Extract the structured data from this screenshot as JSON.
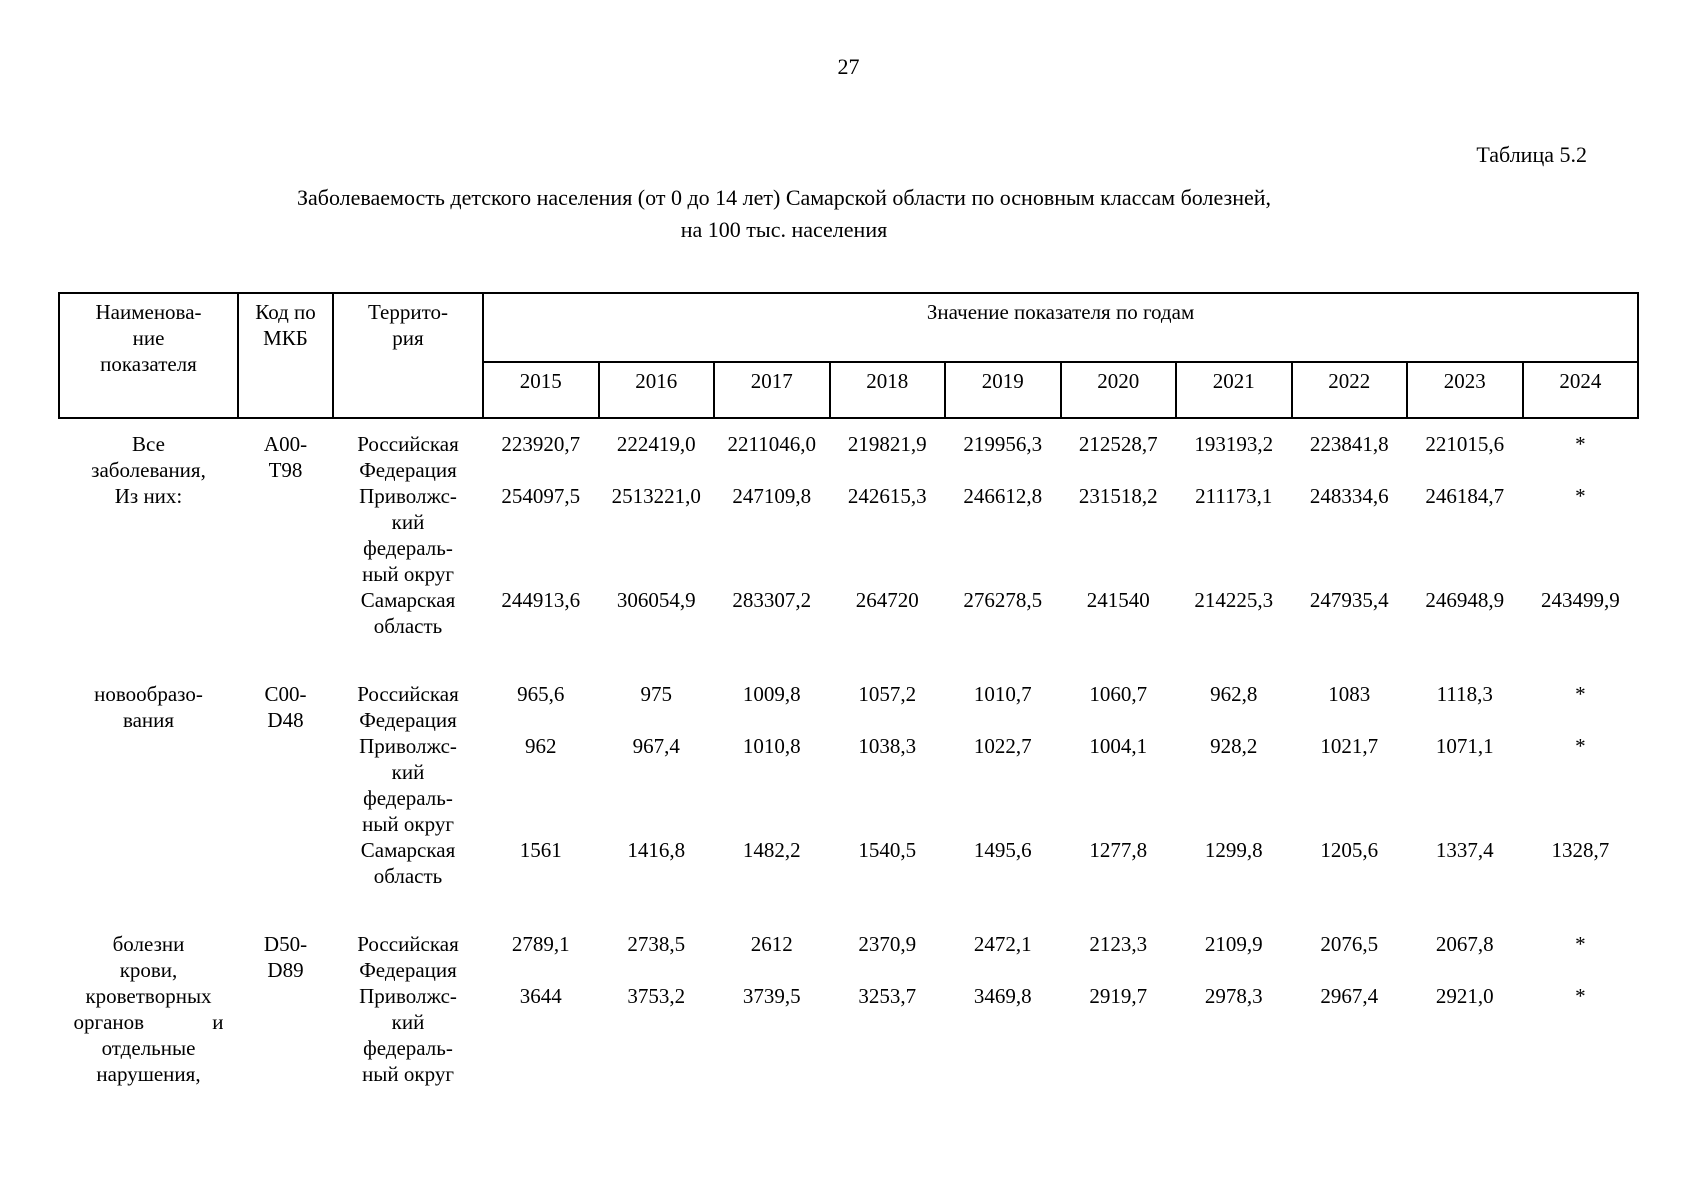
{
  "page": {
    "number": "27",
    "table_label": "Таблица 5.2",
    "title_line1": "Заболеваемость детского населения (от 0 до 14 лет) Самарской области по основным классам болезней,",
    "title_line2": "на 100 тыс. населения"
  },
  "table": {
    "headers": {
      "name": "Наименова-\nние\nпоказателя",
      "code": "Код по\nМКБ",
      "territory": "Террито-\nрия",
      "values_group": "Значение показателя по годам",
      "years": [
        "2015",
        "2016",
        "2017",
        "2018",
        "2019",
        "2020",
        "2021",
        "2022",
        "2023",
        "2024"
      ]
    },
    "blocks": [
      {
        "name": "Все\nзаболевания,\nИз них:",
        "code": "A00-\nT98",
        "rows": [
          {
            "territory": "Российская\nФедерация",
            "values": [
              "223920,7",
              "222419,0",
              "2211046,0",
              "219821,9",
              "219956,3",
              "212528,7",
              "193193,2",
              "223841,8",
              "221015,6",
              "*"
            ]
          },
          {
            "territory": "Приволжс-\nкий\nфедераль-\nный округ",
            "values": [
              "254097,5",
              "2513221,0",
              "247109,8",
              "242615,3",
              "246612,8",
              "231518,2",
              "211173,1",
              "248334,6",
              "246184,7",
              "*"
            ]
          },
          {
            "territory": "Самарская\nобласть",
            "values": [
              "244913,6",
              "306054,9",
              "283307,2",
              "264720",
              "276278,5",
              "241540",
              "214225,3",
              "247935,4",
              "246948,9",
              "243499,9"
            ]
          }
        ]
      },
      {
        "name": "новообразо-\nвания",
        "code": "C00-\nD48",
        "rows": [
          {
            "territory": "Российская\nФедерация",
            "values": [
              "965,6",
              "975",
              "1009,8",
              "1057,2",
              "1010,7",
              "1060,7",
              "962,8",
              "1083",
              "1118,3",
              "*"
            ]
          },
          {
            "territory": "Приволжс-\nкий\nфедераль-\nный округ",
            "values": [
              "962",
              "967,4",
              "1010,8",
              "1038,3",
              "1022,7",
              "1004,1",
              "928,2",
              "1021,7",
              "1071,1",
              "*"
            ]
          },
          {
            "territory": "Самарская\nобласть",
            "values": [
              "1561",
              "1416,8",
              "1482,2",
              "1540,5",
              "1495,6",
              "1277,8",
              "1299,8",
              "1205,6",
              "1337,4",
              "1328,7"
            ]
          }
        ]
      },
      {
        "name": "болезни\nкрови,\nкроветворных\nорганов             и\nотдельные\nнарушения,",
        "code": "D50-\nD89",
        "rows": [
          {
            "territory": "Российская\nФедерация",
            "values": [
              "2789,1",
              "2738,5",
              "2612",
              "2370,9",
              "2472,1",
              "2123,3",
              "2109,9",
              "2076,5",
              "2067,8",
              "*"
            ]
          },
          {
            "territory": "Приволжс-\nкий\nфедераль-\nный округ",
            "values": [
              "3644",
              "3753,2",
              "3739,5",
              "3253,7",
              "3469,8",
              "2919,7",
              "2978,3",
              "2967,4",
              "2921,0",
              "*"
            ]
          }
        ]
      }
    ]
  }
}
